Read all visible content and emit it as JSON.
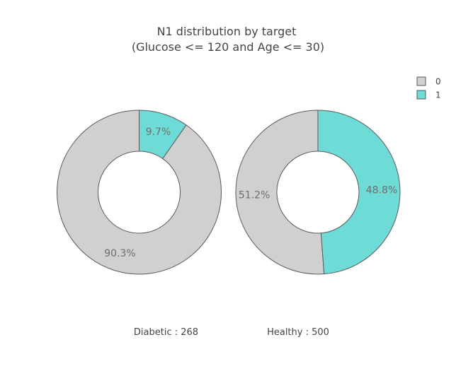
{
  "chart_data": {
    "type": "pie",
    "title_line1": "N1 distribution by target",
    "title_line2": "(Glucose <= 120 and Age <= 30)",
    "legend": {
      "placement": "top-right",
      "items": [
        {
          "label": "0",
          "color": "#d0d0d0"
        },
        {
          "label": "1",
          "color": "#6edbd6"
        }
      ]
    },
    "hole": 0.5,
    "pies": [
      {
        "caption": "Diabetic : 268",
        "slices": [
          {
            "category": "0",
            "value": 90.3,
            "label": "90.3%",
            "color": "#d0d0d0"
          },
          {
            "category": "1",
            "value": 9.7,
            "label": "9.7%",
            "color": "#6edbd6"
          }
        ]
      },
      {
        "caption": "Healthy : 500",
        "slices": [
          {
            "category": "0",
            "value": 51.2,
            "label": "51.2%",
            "color": "#d0d0d0"
          },
          {
            "category": "1",
            "value": 48.8,
            "label": "48.8%",
            "color": "#6edbd6"
          }
        ]
      }
    ]
  }
}
